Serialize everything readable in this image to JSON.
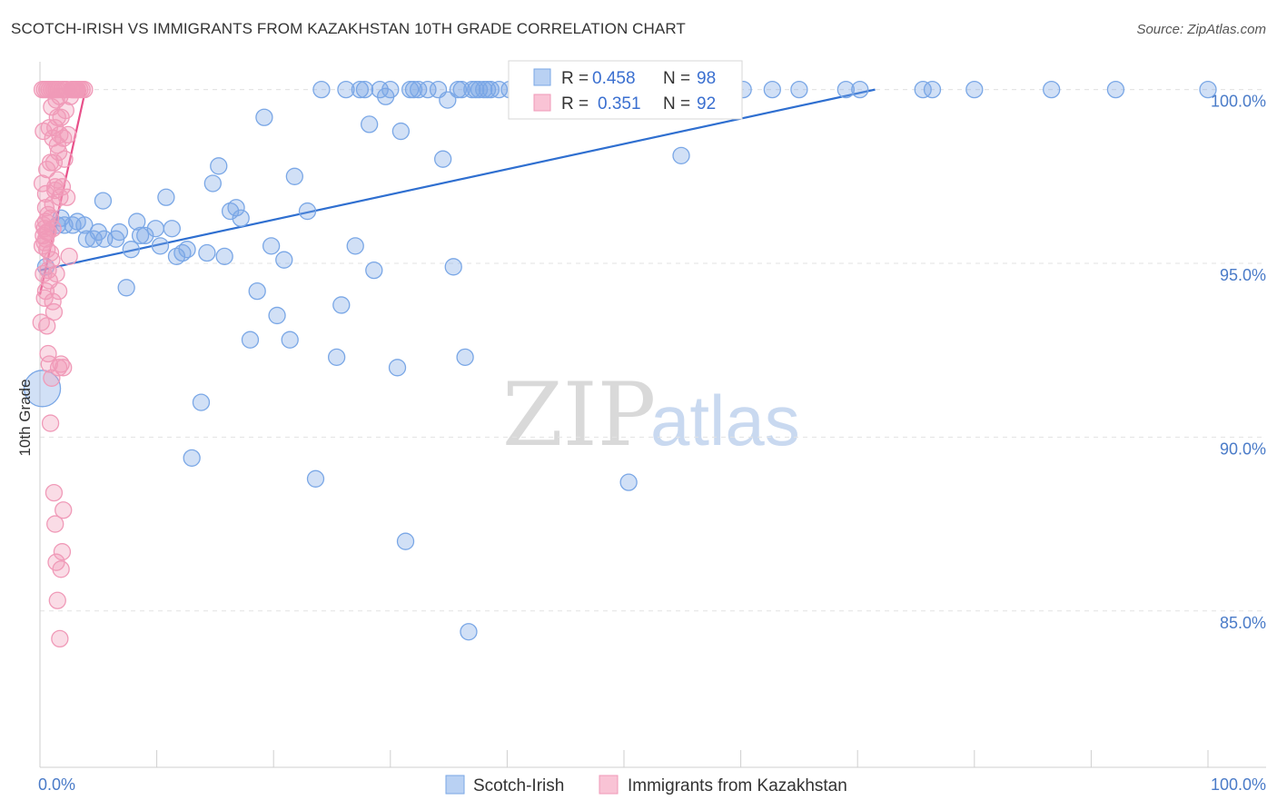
{
  "title": "SCOTCH-IRISH VS IMMIGRANTS FROM KAZAKHSTAN 10TH GRADE CORRELATION CHART",
  "source": "Source: ZipAtlas.com",
  "watermark": {
    "zip": "ZIP",
    "atlas": "atlas"
  },
  "chart_data": {
    "type": "scatter",
    "ylabel": "10th Grade",
    "xlim": [
      0,
      100
    ],
    "ylim": [
      80.5,
      100.8
    ],
    "x_tick_labels": [
      "0.0%",
      "100.0%"
    ],
    "y_ticks": [
      85,
      90,
      95,
      100
    ],
    "y_tick_labels": [
      "85.0%",
      "90.0%",
      "95.0%",
      "100.0%"
    ],
    "grid": "horizontal dashed",
    "legend_position": "top-center",
    "series": [
      {
        "name": "Scotch-Irish",
        "color": "#7aa7e6",
        "line_color": "#2f6fd0",
        "R": "0.458",
        "N": "98",
        "trend": [
          [
            0,
            94.8
          ],
          [
            71.5,
            100
          ]
        ],
        "points": [
          [
            0.2,
            91.4
          ],
          [
            0.5,
            94.9
          ],
          [
            1.5,
            96.1
          ],
          [
            1.8,
            96.3
          ],
          [
            2.1,
            96.1
          ],
          [
            2.8,
            96.1
          ],
          [
            3.2,
            96.2
          ],
          [
            3.8,
            96.1
          ],
          [
            4.0,
            95.7
          ],
          [
            4.6,
            95.7
          ],
          [
            5.0,
            95.9
          ],
          [
            5.5,
            95.7
          ],
          [
            5.4,
            96.8
          ],
          [
            6.5,
            95.7
          ],
          [
            6.8,
            95.9
          ],
          [
            7.4,
            94.3
          ],
          [
            7.8,
            95.4
          ],
          [
            8.3,
            96.2
          ],
          [
            8.6,
            95.8
          ],
          [
            9.0,
            95.8
          ],
          [
            9.9,
            96.0
          ],
          [
            10.3,
            95.5
          ],
          [
            10.8,
            96.9
          ],
          [
            11.3,
            96.0
          ],
          [
            11.7,
            95.2
          ],
          [
            12.2,
            95.3
          ],
          [
            12.6,
            95.4
          ],
          [
            13.0,
            89.4
          ],
          [
            13.8,
            91.0
          ],
          [
            14.3,
            95.3
          ],
          [
            14.8,
            97.3
          ],
          [
            15.3,
            97.8
          ],
          [
            15.8,
            95.2
          ],
          [
            16.3,
            96.5
          ],
          [
            16.8,
            96.6
          ],
          [
            17.2,
            96.3
          ],
          [
            18.0,
            92.8
          ],
          [
            18.6,
            94.2
          ],
          [
            19.2,
            99.2
          ],
          [
            19.8,
            95.5
          ],
          [
            20.3,
            93.5
          ],
          [
            20.9,
            95.1
          ],
          [
            21.4,
            92.8
          ],
          [
            21.8,
            97.5
          ],
          [
            22.9,
            96.5
          ],
          [
            23.6,
            88.8
          ],
          [
            24.1,
            100
          ],
          [
            25.4,
            92.3
          ],
          [
            25.8,
            93.8
          ],
          [
            26.2,
            100
          ],
          [
            27.0,
            95.5
          ],
          [
            27.4,
            100
          ],
          [
            27.8,
            100
          ],
          [
            28.2,
            99.0
          ],
          [
            28.6,
            94.8
          ],
          [
            29.1,
            100
          ],
          [
            29.6,
            99.8
          ],
          [
            30.0,
            100
          ],
          [
            30.6,
            92.0
          ],
          [
            30.9,
            98.8
          ],
          [
            31.3,
            87.0
          ],
          [
            31.7,
            100
          ],
          [
            32.0,
            100
          ],
          [
            32.4,
            100
          ],
          [
            33.2,
            100
          ],
          [
            34.1,
            100
          ],
          [
            34.5,
            98.0
          ],
          [
            34.9,
            99.7
          ],
          [
            35.4,
            94.9
          ],
          [
            35.8,
            100
          ],
          [
            36.1,
            100
          ],
          [
            36.4,
            92.3
          ],
          [
            36.7,
            84.4
          ],
          [
            37.0,
            100
          ],
          [
            37.3,
            100
          ],
          [
            37.6,
            100
          ],
          [
            38.0,
            100
          ],
          [
            38.3,
            100
          ],
          [
            38.6,
            100
          ],
          [
            39.3,
            100
          ],
          [
            40.2,
            100
          ],
          [
            41.2,
            100
          ],
          [
            44.8,
            100
          ],
          [
            50.4,
            88.7
          ],
          [
            53.8,
            100
          ],
          [
            54.9,
            98.1
          ],
          [
            58.4,
            100
          ],
          [
            60.2,
            100
          ],
          [
            62.7,
            100
          ],
          [
            65.0,
            100
          ],
          [
            69.0,
            100
          ],
          [
            70.2,
            100
          ],
          [
            75.6,
            100
          ],
          [
            76.4,
            100
          ],
          [
            80.0,
            100
          ],
          [
            86.6,
            100
          ],
          [
            92.1,
            100
          ],
          [
            100.0,
            100
          ]
        ]
      },
      {
        "name": "Immigrants from Kazakhstan",
        "color": "#f09ab8",
        "line_color": "#e8508a",
        "R": "0.351",
        "N": "92",
        "trend": [
          [
            0,
            94.1
          ],
          [
            3.9,
            100
          ]
        ],
        "points": [
          [
            0.1,
            93.3
          ],
          [
            0.2,
            95.5
          ],
          [
            0.3,
            94.7
          ],
          [
            0.4,
            96.0
          ],
          [
            0.5,
            94.2
          ],
          [
            0.6,
            95.9
          ],
          [
            0.7,
            92.4
          ],
          [
            0.8,
            94.5
          ],
          [
            0.9,
            90.4
          ],
          [
            1.0,
            95.1
          ],
          [
            1.1,
            93.9
          ],
          [
            1.2,
            88.4
          ],
          [
            1.3,
            87.5
          ],
          [
            1.4,
            86.4
          ],
          [
            1.5,
            85.3
          ],
          [
            1.6,
            92.0
          ],
          [
            1.7,
            84.2
          ],
          [
            1.8,
            86.2
          ],
          [
            1.9,
            86.7
          ],
          [
            2.0,
            87.9
          ],
          [
            0.2,
            97.3
          ],
          [
            0.3,
            98.8
          ],
          [
            0.5,
            96.6
          ],
          [
            0.6,
            97.7
          ],
          [
            0.8,
            98.9
          ],
          [
            1.0,
            99.5
          ],
          [
            1.2,
            97.9
          ],
          [
            1.4,
            99.7
          ],
          [
            1.6,
            98.2
          ],
          [
            1.8,
            99.2
          ],
          [
            2.0,
            98.6
          ],
          [
            2.2,
            99.4
          ],
          [
            2.4,
            98.7
          ],
          [
            2.6,
            99.8
          ],
          [
            2.8,
            100
          ],
          [
            3.0,
            100
          ],
          [
            3.2,
            100
          ],
          [
            3.4,
            100
          ],
          [
            3.6,
            100
          ],
          [
            3.8,
            100
          ],
          [
            0.3,
            95.8
          ],
          [
            0.4,
            95.6
          ],
          [
            0.5,
            96.2
          ],
          [
            0.6,
            95.4
          ],
          [
            0.7,
            95.9
          ],
          [
            0.9,
            96.3
          ],
          [
            1.1,
            96.7
          ],
          [
            1.3,
            97.1
          ],
          [
            1.5,
            97.4
          ],
          [
            1.7,
            96.9
          ],
          [
            1.9,
            97.2
          ],
          [
            2.1,
            98.0
          ],
          [
            2.3,
            96.9
          ],
          [
            2.5,
            95.2
          ],
          [
            2.7,
            100
          ],
          [
            2.9,
            100
          ],
          [
            3.1,
            100
          ],
          [
            0.4,
            94.0
          ],
          [
            0.6,
            93.2
          ],
          [
            0.8,
            92.1
          ],
          [
            1.0,
            91.7
          ],
          [
            1.2,
            93.6
          ],
          [
            1.4,
            94.7
          ],
          [
            1.6,
            94.2
          ],
          [
            1.8,
            92.1
          ],
          [
            2.0,
            92.0
          ],
          [
            0.5,
            97.0
          ],
          [
            0.7,
            96.4
          ],
          [
            0.9,
            97.9
          ],
          [
            1.1,
            98.6
          ],
          [
            1.3,
            98.9
          ],
          [
            1.5,
            99.2
          ],
          [
            1.7,
            99.8
          ],
          [
            1.9,
            100
          ],
          [
            2.1,
            100
          ],
          [
            2.3,
            100
          ],
          [
            0.2,
            100
          ],
          [
            0.4,
            100
          ],
          [
            0.6,
            100
          ],
          [
            0.8,
            100
          ],
          [
            1.0,
            100
          ],
          [
            1.2,
            100
          ],
          [
            1.4,
            100
          ],
          [
            1.6,
            100
          ],
          [
            0.3,
            96.1
          ],
          [
            0.5,
            95.7
          ],
          [
            0.7,
            94.8
          ],
          [
            0.9,
            95.3
          ],
          [
            1.1,
            96.0
          ],
          [
            1.3,
            97.2
          ],
          [
            1.5,
            98.4
          ],
          [
            1.7,
            98.7
          ]
        ]
      }
    ]
  }
}
